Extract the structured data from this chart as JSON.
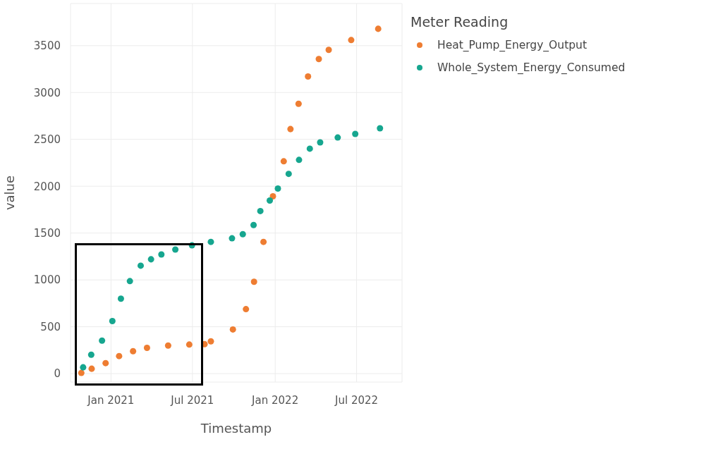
{
  "chart_data": {
    "type": "scatter",
    "xlabel": "Timestamp",
    "ylabel": "value",
    "legend_title": "Meter Reading",
    "legend": "top right",
    "grid": true,
    "marker": "circle",
    "xlim": [
      "2020-10-03",
      "2022-10-10"
    ],
    "xticks": [
      {
        "value": "2021-01-01",
        "label": "Jan 2021"
      },
      {
        "value": "2021-07-01",
        "label": "Jul 2021"
      },
      {
        "value": "2022-01-01",
        "label": "Jan 2022"
      },
      {
        "value": "2022-07-01",
        "label": "Jul 2022"
      }
    ],
    "ylim": [
      -90,
      3950
    ],
    "yticks": [
      0,
      500,
      1000,
      1500,
      2000,
      2500,
      3000,
      3500
    ],
    "series": [
      {
        "name": "Heat_Pump_Energy_Output",
        "color": "#ee7d32",
        "x": [
          "2020-10-27",
          "2020-11-19",
          "2020-12-20",
          "2021-01-19",
          "2021-02-19",
          "2021-03-22",
          "2021-05-08",
          "2021-06-24",
          "2021-07-28",
          "2021-08-11",
          "2021-09-29",
          "2021-10-28",
          "2021-11-15",
          "2021-12-06",
          "2021-12-27",
          "2022-01-20",
          "2022-02-04",
          "2022-02-22",
          "2022-03-15",
          "2022-04-08",
          "2022-04-30",
          "2022-06-19",
          "2022-08-18"
        ],
        "values": [
          7,
          52,
          112,
          187,
          239,
          275,
          299,
          310,
          314,
          344,
          471,
          688,
          980,
          1406,
          1892,
          2266,
          2610,
          2880,
          3171,
          3358,
          3455,
          3560,
          3680
        ]
      },
      {
        "name": "Whole_System_Energy_Consumed",
        "color": "#16a68f",
        "x": [
          "2020-10-31",
          "2020-11-18",
          "2020-12-12",
          "2021-01-04",
          "2021-01-23",
          "2021-02-12",
          "2021-03-08",
          "2021-03-31",
          "2021-04-23",
          "2021-05-24",
          "2021-06-30",
          "2021-08-11",
          "2021-09-27",
          "2021-10-21",
          "2021-11-14",
          "2021-11-29",
          "2021-12-20",
          "2022-01-07",
          "2022-01-31",
          "2022-02-23",
          "2022-03-19",
          "2022-04-11",
          "2022-05-20",
          "2022-06-28",
          "2022-08-22"
        ],
        "values": [
          67,
          202,
          352,
          561,
          800,
          987,
          1152,
          1220,
          1272,
          1324,
          1369,
          1406,
          1444,
          1488,
          1586,
          1735,
          1847,
          1975,
          2132,
          2281,
          2401,
          2468,
          2520,
          2558,
          2618
        ]
      }
    ]
  }
}
